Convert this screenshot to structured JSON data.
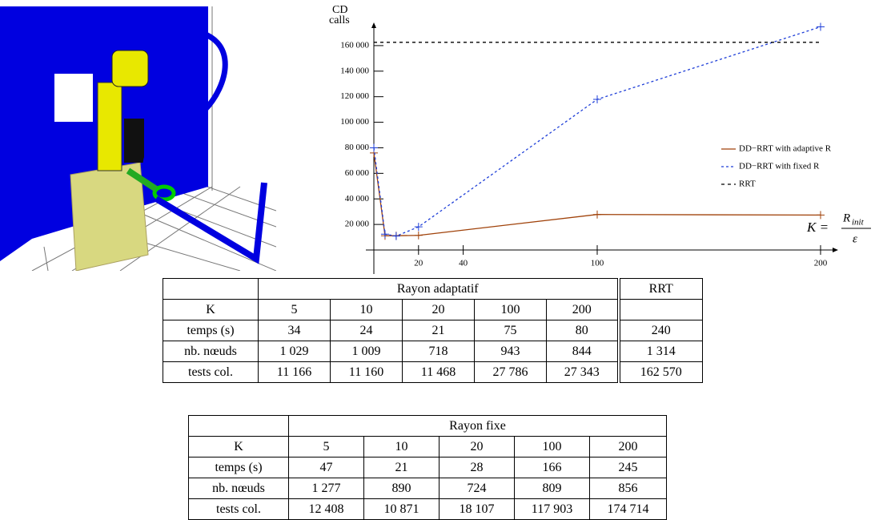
{
  "chart_data": {
    "type": "line",
    "y_label": [
      "CD",
      "calls"
    ],
    "x_label": {
      "lhs": "K =",
      "numerator": "R",
      "numerator_sub": "init",
      "denominator": "ε"
    },
    "xlim": [
      0,
      200
    ],
    "ylim": [
      0,
      175000
    ],
    "xticks": [
      20,
      40,
      100,
      200
    ],
    "yticks": [
      {
        "value": 20000,
        "label": "20 000"
      },
      {
        "value": 40000,
        "label": "40 000"
      },
      {
        "value": 60000,
        "label": "60 000"
      },
      {
        "value": 80000,
        "label": "80 000"
      },
      {
        "value": 100000,
        "label": "100 000"
      },
      {
        "value": 120000,
        "label": "120 000"
      },
      {
        "value": 140000,
        "label": "140 000"
      },
      {
        "value": 160000,
        "label": "160 000"
      }
    ],
    "series": [
      {
        "name": "DD−RRT with adaptive R",
        "color": "#a0420a",
        "dash": "none",
        "x": [
          0,
          5,
          10,
          20,
          100,
          200
        ],
        "values": [
          76000,
          11166,
          11160,
          11468,
          27786,
          27343
        ]
      },
      {
        "name": "DD−RRT with fixed R",
        "color": "#1f3fd8",
        "dash": "3,3",
        "x": [
          0,
          5,
          10,
          20,
          100,
          200
        ],
        "values": [
          80000,
          12408,
          10871,
          18107,
          117903,
          174714
        ]
      },
      {
        "name": "RRT",
        "color": "#000000",
        "dash": "4,4",
        "x": [
          0,
          200
        ],
        "values": [
          162570,
          162570
        ]
      }
    ]
  },
  "tables": [
    {
      "group_header": "Rayon adaptatif",
      "extra_header": "RRT",
      "rows": [
        [
          "K",
          "5",
          "10",
          "20",
          "100",
          "200"
        ],
        [
          "temps (s)",
          "34",
          "24",
          "21",
          "75",
          "80",
          "240"
        ],
        [
          "nb. nœuds",
          "1 029",
          "1 009",
          "718",
          "943",
          "844",
          "1 314"
        ],
        [
          "tests col.",
          "11 166",
          "11 160",
          "11 468",
          "27 786",
          "27 343",
          "162 570"
        ]
      ]
    },
    {
      "group_header": "Rayon fixe",
      "rows": [
        [
          "K",
          "5",
          "10",
          "20",
          "100",
          "200"
        ],
        [
          "temps (s)",
          "47",
          "21",
          "28",
          "166",
          "245"
        ],
        [
          "nb. nœuds",
          "1 277",
          "890",
          "724",
          "809",
          "856"
        ],
        [
          "tests col.",
          "12 408",
          "10 871",
          "18 107",
          "117 903",
          "174 714"
        ]
      ]
    }
  ]
}
